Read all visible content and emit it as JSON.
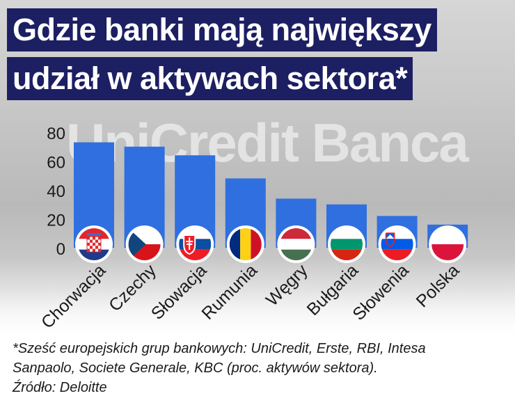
{
  "title_line1": "Gdzie banki mają największy",
  "title_line2": "udział w aktywach sektora*",
  "watermark_text": "UniCredit Banca",
  "footnote_line1": "*Sześć europejskich grup bankowych: UniCredit, Erste, RBI, Intesa",
  "footnote_line2": "Sanpaolo, Societe Generale, KBC (proc. aktywów sektora).",
  "source": "Źródło: Deloitte",
  "colors": {
    "bar": "#2f6fe0",
    "title_bg": "#1d1f63",
    "text": "#1a1a1a"
  },
  "chart_data": {
    "type": "bar",
    "categories": [
      "Chorwacja",
      "Czechy",
      "Słowacja",
      "Rumunia",
      "Węgry",
      "Bułgaria",
      "Słowenia",
      "Polska"
    ],
    "values": [
      73,
      70,
      64,
      48,
      34,
      30,
      22,
      16
    ],
    "flags": [
      "croatia-flag",
      "czechia-flag",
      "slovakia-flag",
      "romania-flag",
      "hungary-flag",
      "bulgaria-flag",
      "slovenia-flag",
      "poland-flag"
    ],
    "yticks": [
      0,
      20,
      40,
      60,
      80
    ],
    "ylim": [
      0,
      80
    ],
    "grid": false,
    "legend": "none"
  }
}
